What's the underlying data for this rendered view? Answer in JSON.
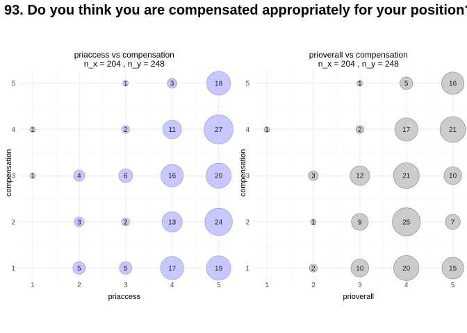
{
  "page_title": "93. Do you think you are compensated appropriately for your position?",
  "chart_data": [
    {
      "type": "scatter",
      "title": "priaccess vs compensation",
      "subtitle": "n_x = 204 , n_y = 248",
      "xlabel": "priaccess",
      "ylabel": "compensation",
      "xlim": [
        1,
        5
      ],
      "ylim": [
        1,
        5
      ],
      "x_ticks": [
        "1",
        "2",
        "3",
        "4",
        "5"
      ],
      "y_ticks": [
        "1",
        "2",
        "3",
        "4",
        "5"
      ],
      "grid": true,
      "marker_fill": "#c8c8ff",
      "marker_stroke": "#9a9ae6",
      "points": [
        {
          "x": 3,
          "y": 5,
          "n": 1
        },
        {
          "x": 4,
          "y": 5,
          "n": 3
        },
        {
          "x": 5,
          "y": 5,
          "n": 18
        },
        {
          "x": 1,
          "y": 4,
          "n": 1
        },
        {
          "x": 3,
          "y": 4,
          "n": 2
        },
        {
          "x": 4,
          "y": 4,
          "n": 11
        },
        {
          "x": 5,
          "y": 4,
          "n": 27
        },
        {
          "x": 1,
          "y": 3,
          "n": 1
        },
        {
          "x": 2,
          "y": 3,
          "n": 4
        },
        {
          "x": 3,
          "y": 3,
          "n": 6
        },
        {
          "x": 4,
          "y": 3,
          "n": 16
        },
        {
          "x": 5,
          "y": 3,
          "n": 20
        },
        {
          "x": 2,
          "y": 2,
          "n": 3
        },
        {
          "x": 3,
          "y": 2,
          "n": 2
        },
        {
          "x": 4,
          "y": 2,
          "n": 13
        },
        {
          "x": 5,
          "y": 2,
          "n": 24
        },
        {
          "x": 2,
          "y": 1,
          "n": 5
        },
        {
          "x": 3,
          "y": 1,
          "n": 5
        },
        {
          "x": 4,
          "y": 1,
          "n": 17
        },
        {
          "x": 5,
          "y": 1,
          "n": 19
        }
      ]
    },
    {
      "type": "scatter",
      "title": "prioverall vs compensation",
      "subtitle": "n_x = 204 , n_y = 248",
      "xlabel": "prioverall",
      "ylabel": "compensation",
      "xlim": [
        1,
        5
      ],
      "ylim": [
        1,
        5
      ],
      "x_ticks": [
        "1",
        "2",
        "3",
        "4",
        "5"
      ],
      "y_ticks": [
        "1",
        "2",
        "3",
        "4",
        "5"
      ],
      "grid": true,
      "marker_fill": "#cccccc",
      "marker_stroke": "#8c8c8c",
      "points": [
        {
          "x": 3,
          "y": 5,
          "n": 1
        },
        {
          "x": 4,
          "y": 5,
          "n": 5
        },
        {
          "x": 5,
          "y": 5,
          "n": 16
        },
        {
          "x": 1,
          "y": 4,
          "n": 1
        },
        {
          "x": 3,
          "y": 4,
          "n": 2
        },
        {
          "x": 4,
          "y": 4,
          "n": 17
        },
        {
          "x": 5,
          "y": 4,
          "n": 21
        },
        {
          "x": 2,
          "y": 3,
          "n": 3
        },
        {
          "x": 3,
          "y": 3,
          "n": 12
        },
        {
          "x": 4,
          "y": 3,
          "n": 21
        },
        {
          "x": 5,
          "y": 3,
          "n": 10
        },
        {
          "x": 2,
          "y": 2,
          "n": 1
        },
        {
          "x": 3,
          "y": 2,
          "n": 9
        },
        {
          "x": 4,
          "y": 2,
          "n": 25
        },
        {
          "x": 5,
          "y": 2,
          "n": 7
        },
        {
          "x": 2,
          "y": 1,
          "n": 2
        },
        {
          "x": 3,
          "y": 1,
          "n": 10
        },
        {
          "x": 4,
          "y": 1,
          "n": 20
        },
        {
          "x": 5,
          "y": 1,
          "n": 15
        }
      ]
    }
  ]
}
